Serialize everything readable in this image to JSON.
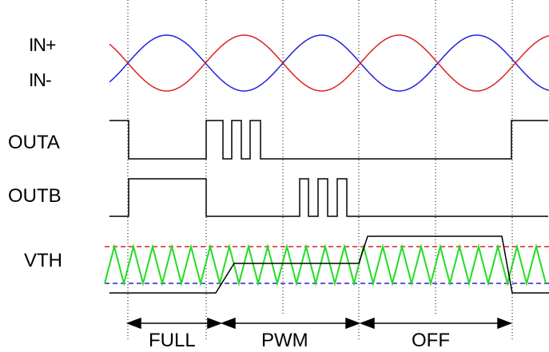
{
  "signals": {
    "in_plus": "IN+",
    "in_minus": "IN-",
    "outa": "OUTA",
    "outb": "OUTB",
    "vth": "VTH"
  },
  "regions": {
    "full": "FULL",
    "pwm": "PWM",
    "off": "OFF"
  },
  "colors": {
    "in_plus": "#2222dd",
    "in_minus": "#dd2222",
    "outputs": "#000000",
    "triangle": "#22dd22",
    "vth_upper_threshold": "#dd2222",
    "vth_lower_threshold": "#2222cc",
    "guides": "#000000"
  }
}
